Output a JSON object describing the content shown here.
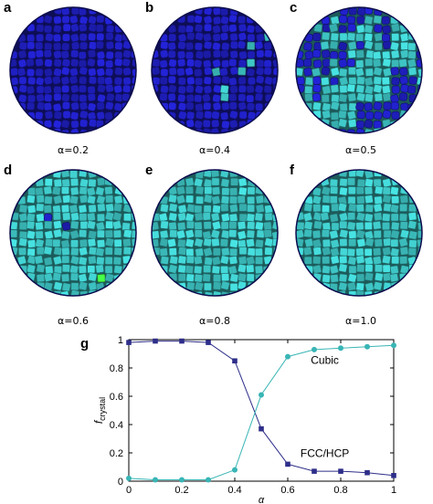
{
  "panels": [
    {
      "letter": "a",
      "caption": "α=0.2",
      "fractions": {
        "hcp": 0.94,
        "cubic": 0.02,
        "green": 0.04
      }
    },
    {
      "letter": "b",
      "caption": "α=0.4",
      "fractions": {
        "hcp": 0.86,
        "cubic": 0.11,
        "green": 0.03
      }
    },
    {
      "letter": "c",
      "caption": "α=0.5",
      "fractions": {
        "hcp": 0.4,
        "cubic": 0.57,
        "green": 0.03
      }
    },
    {
      "letter": "d",
      "caption": "α=0.6",
      "fractions": {
        "hcp": 0.12,
        "cubic": 0.86,
        "green": 0.02
      }
    },
    {
      "letter": "e",
      "caption": "α=0.8",
      "fractions": {
        "hcp": 0.04,
        "cubic": 0.94,
        "green": 0.02
      }
    },
    {
      "letter": "f",
      "caption": "α=1.0",
      "fractions": {
        "hcp": 0.02,
        "cubic": 0.97,
        "green": 0.01
      }
    }
  ],
  "colors": {
    "hcp": "#1f1fc0",
    "cubic": "#3fc8c8",
    "green": "#3ee03e",
    "hcp_line": "#2e2e8a",
    "cubic_line": "#39b5b5"
  },
  "chart_data": {
    "type": "line",
    "panel_letter": "g",
    "xlabel": "α",
    "ylabel_main": "f",
    "ylabel_sub": "crystal",
    "xlim": [
      0,
      1
    ],
    "ylim": [
      0,
      1
    ],
    "xticks": [
      "0",
      "0.2",
      "0.4",
      "0.6",
      "0.8",
      "1"
    ],
    "yticks": [
      "0",
      "0.2",
      "0.4",
      "0.6",
      "0.8",
      "1"
    ],
    "x": [
      0,
      0.1,
      0.2,
      0.3,
      0.4,
      0.5,
      0.6,
      0.7,
      0.8,
      0.9,
      1.0
    ],
    "series": [
      {
        "name": "FCC/HCP",
        "marker": "square",
        "values": [
          0.98,
          0.99,
          0.99,
          0.98,
          0.85,
          0.37,
          0.12,
          0.07,
          0.07,
          0.06,
          0.04
        ]
      },
      {
        "name": "Cubic",
        "marker": "circle",
        "values": [
          0.02,
          0.01,
          0.01,
          0.01,
          0.08,
          0.61,
          0.88,
          0.93,
          0.94,
          0.95,
          0.96
        ]
      }
    ]
  }
}
